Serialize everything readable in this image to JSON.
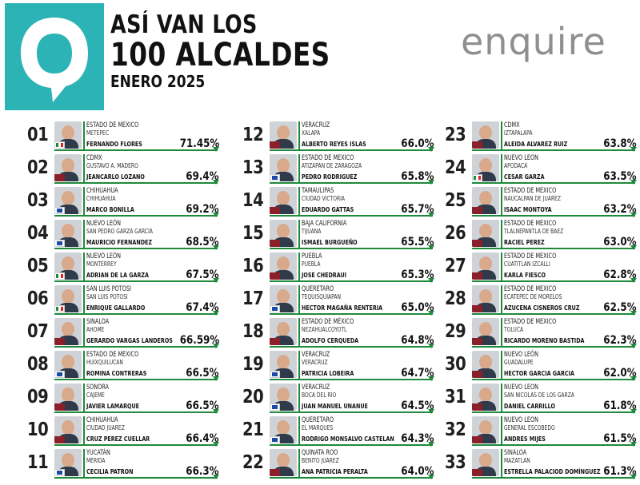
{
  "header": {
    "title_line1": "ASÍ VAN LOS",
    "title_line2": "100 ALCALDES",
    "title_line3": "ENERO 2025",
    "brand": "enquire"
  },
  "colors": {
    "logo_bg": "#2bb3b5",
    "accent_green": "#1f8a3c",
    "brand_gray": "#8f8f8f",
    "brand_teal": "#2bb3b5"
  },
  "columns": [
    [
      {
        "rank": "01",
        "state": "ESTADO DE MEXICO",
        "city": "METEPEC",
        "name": "FERNANDO FLORES",
        "pct": "71.45%",
        "party": "pri"
      },
      {
        "rank": "02",
        "state": "CDMX",
        "city": "GUSTAVO A. MADERO",
        "name": "JEANCARLO LOZANO",
        "pct": "69.4%",
        "party": "morena"
      },
      {
        "rank": "03",
        "state": "CHIHUAHUA",
        "city": "CHIHUAHUA",
        "name": "MARCO BONILLA",
        "pct": "69.2%",
        "party": "pan"
      },
      {
        "rank": "04",
        "state": "NUEVO LEÓN",
        "city": "SAN PEDRO GARZA GARCÍA",
        "name": "MAURICIO FERNANDEZ",
        "pct": "68.5%",
        "party": "pan"
      },
      {
        "rank": "05",
        "state": "NUEVO LEÓN",
        "city": "MONTERREY",
        "name": "ADRIAN DE LA GARZA",
        "pct": "67.5%",
        "party": "pri"
      },
      {
        "rank": "06",
        "state": "SAN LUIS POTOSI",
        "city": "SAN LUIS POTOSI",
        "name": "ENRIQUE GALLARDO",
        "pct": "67.4%",
        "party": "pri"
      },
      {
        "rank": "07",
        "state": "SINALOA",
        "city": "AHOME",
        "name": "GERARDO VARGAS LANDEROS",
        "pct": "66.59%",
        "party": "morena"
      },
      {
        "rank": "08",
        "state": "ESTADO DE MEXICO",
        "city": "HUIXQUILUCAN",
        "name": "ROMINA CONTRERAS",
        "pct": "66.5%",
        "party": "pan"
      },
      {
        "rank": "09",
        "state": "SONORA",
        "city": "CAJEME",
        "name": "JAVIER LAMARQUE",
        "pct": "66.5%",
        "party": "morena"
      },
      {
        "rank": "10",
        "state": "CHIHUAHUA",
        "city": "CIUDAD JUAREZ",
        "name": "CRUZ PEREZ CUELLAR",
        "pct": "66.4%",
        "party": "morena"
      },
      {
        "rank": "11",
        "state": "YUCATÁN",
        "city": "MÉRIDA",
        "name": "CECILIA PATRON",
        "pct": "66.3%",
        "party": "pan"
      }
    ],
    [
      {
        "rank": "12",
        "state": "VERACRUZ",
        "city": "XALAPA",
        "name": "ALBERTO REYES ISLAS",
        "pct": "66.0%",
        "party": "morena"
      },
      {
        "rank": "13",
        "state": "ESTADO DE MEXICO",
        "city": "ATIZAPAN DE ZARAGOZA",
        "name": "PEDRO RODRIGUEZ",
        "pct": "65.8%",
        "party": "pan"
      },
      {
        "rank": "14",
        "state": "TAMAULIPAS",
        "city": "CIUDAD VICTORIA",
        "name": "EDUARDO GATTAS",
        "pct": "65.7%",
        "party": "morena"
      },
      {
        "rank": "15",
        "state": "BAJA CALIFORNIA",
        "city": "TIJUANA",
        "name": "ISMAEL BURGUEÑO",
        "pct": "65.5%",
        "party": "morena"
      },
      {
        "rank": "16",
        "state": "PUEBLA",
        "city": "PUEBLA",
        "name": "JOSE CHEDRAUI",
        "pct": "65.3%",
        "party": "morena"
      },
      {
        "rank": "17",
        "state": "QUERETARO",
        "city": "TEQUISQUIAPAN",
        "name": "HECTOR MAGAÑA RENTERIA",
        "pct": "65.0%",
        "party": "pan"
      },
      {
        "rank": "18",
        "state": "ESTADO DE MÉXICO",
        "city": "NEZAHUALCOYOTL",
        "name": "ADOLFO CERQUEDA",
        "pct": "64.8%",
        "party": "morena"
      },
      {
        "rank": "19",
        "state": "VERACRUZ",
        "city": "VERACRUZ",
        "name": "PATRICIA LOBEIRA",
        "pct": "64.7%",
        "party": "pan"
      },
      {
        "rank": "20",
        "state": "VERACRUZ",
        "city": "BOCA DEL RIO",
        "name": "JUAN MANUEL UNANUE",
        "pct": "64.5%",
        "party": "pan"
      },
      {
        "rank": "21",
        "state": "QUERETARO",
        "city": "EL MARQUES",
        "name": "RODRIGO MONSALVO CASTELAN",
        "pct": "64.3%",
        "party": "pan"
      },
      {
        "rank": "22",
        "state": "QUINATA ROO",
        "city": "BENITO JUÁREZ",
        "name": "ANA PATRICIA PERALTA",
        "pct": "64.0%",
        "party": "morena"
      }
    ],
    [
      {
        "rank": "23",
        "state": "CDMX",
        "city": "IZTAPALAPA",
        "name": "ALEIDA ALVAREZ RUIZ",
        "pct": "63.8%",
        "party": "morena"
      },
      {
        "rank": "24",
        "state": "NUEVO LEON",
        "city": "APODACA",
        "name": "CESAR GARZA",
        "pct": "63.5%",
        "party": "pri"
      },
      {
        "rank": "25",
        "state": "ESTADO DE MEXICO",
        "city": "NAUCALPAN DE JUAREZ",
        "name": "ISAAC MONTOYA",
        "pct": "63.2%",
        "party": "morena"
      },
      {
        "rank": "26",
        "state": "ESTADO DE MEXICO",
        "city": "TLALNEPANTLA DE BAEZ",
        "name": "RACIEL PEREZ",
        "pct": "63.0%",
        "party": "morena"
      },
      {
        "rank": "27",
        "state": "ESTADO DE MEXICO",
        "city": "CUATITLAN IZCALLI",
        "name": "KARLA FIESCO",
        "pct": "62.8%",
        "party": "morena"
      },
      {
        "rank": "28",
        "state": "ESTADO DE MEXICO",
        "city": "ECATEPEC DE MORELOS",
        "name": "AZUCENA CISNEROS CRUZ",
        "pct": "62.5%",
        "party": "morena"
      },
      {
        "rank": "29",
        "state": "ESTADO DE MEXICO",
        "city": "TOLUCA",
        "name": "RICARDO MORENO BASTIDA",
        "pct": "62.3%",
        "party": "morena"
      },
      {
        "rank": "30",
        "state": "NUEVO LEÓN",
        "city": "GUADALUPE",
        "name": "HECTOR GARCIA GARCIA",
        "pct": "62.0%",
        "party": "morena"
      },
      {
        "rank": "31",
        "state": "NUEVO LEON",
        "city": "SAN NICOLAS DE LOS GARZA",
        "name": "DANIEL CARRILLO",
        "pct": "61.8%",
        "party": "morena"
      },
      {
        "rank": "32",
        "state": "NUEVO LEON",
        "city": "GENERAL ESCOBEDO",
        "name": "ANDRES MIJES",
        "pct": "61.5%",
        "party": "morena"
      },
      {
        "rank": "33",
        "state": "SINALOA",
        "city": "MAZATLAN",
        "name": "ESTRELLA PALACIOD DOMÍNGUEZ",
        "pct": "61.3%",
        "party": "morena"
      }
    ]
  ]
}
